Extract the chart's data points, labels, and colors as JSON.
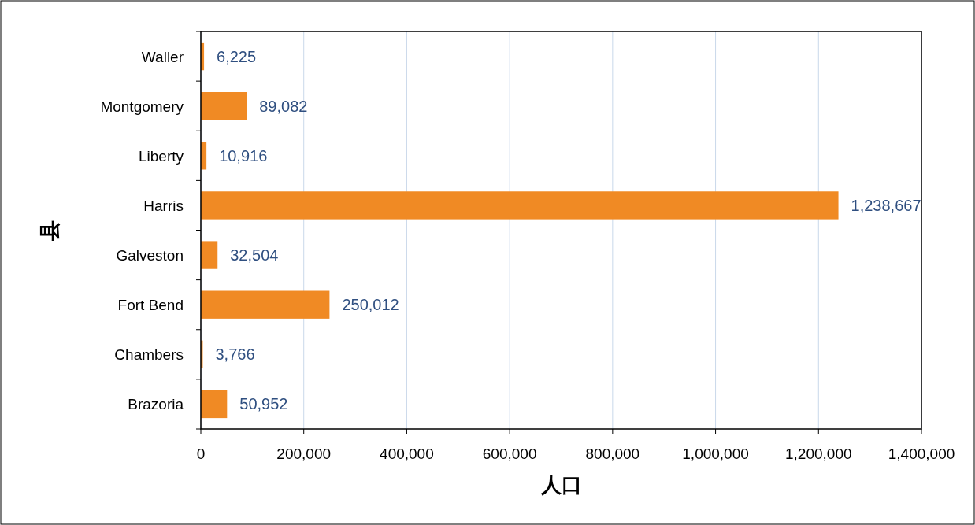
{
  "chart_data": {
    "type": "bar",
    "orientation": "horizontal",
    "xlabel": "人口",
    "ylabel": "县",
    "categories": [
      "Waller",
      "Montgomery",
      "Liberty",
      "Harris",
      "Galveston",
      "Fort Bend",
      "Chambers",
      "Brazoria"
    ],
    "values": [
      6225,
      89082,
      10916,
      1238667,
      32504,
      250012,
      3766,
      50952
    ],
    "value_labels": [
      "6,225",
      "89,082",
      "10,916",
      "1,238,667",
      "32,504",
      "250,012",
      "3,766",
      "50,952"
    ],
    "color": "#f08a24",
    "xlim": [
      0,
      1400000
    ],
    "xticks": [
      0,
      {
        "value": 200000,
        "label": "200,000"
      },
      {
        "value": 400000,
        "label": "400,000"
      },
      {
        "value": 600000,
        "label": "600,000"
      },
      {
        "value": 800000,
        "label": "800,000"
      },
      {
        "value": 1000000,
        "label": "1,000,000"
      },
      {
        "value": 1200000,
        "label": "1,200,000"
      },
      {
        "value": 1400000,
        "label": "1,400,000"
      }
    ],
    "grid": "x"
  }
}
